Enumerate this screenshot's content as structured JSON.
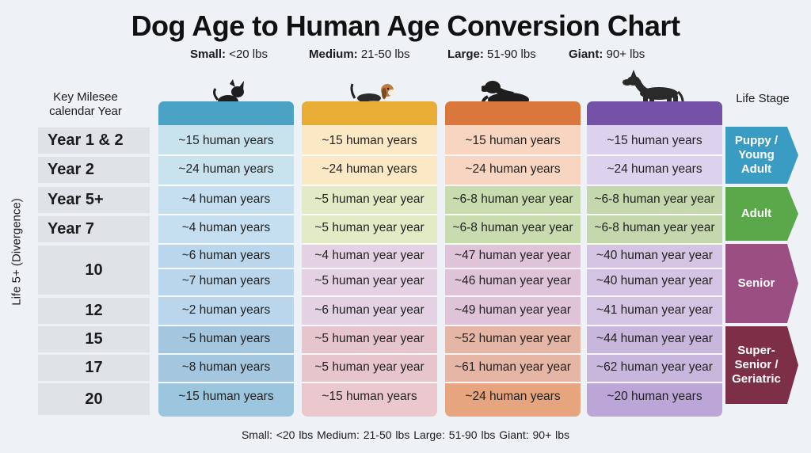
{
  "title": "Dog Age  to Human Age Conversion Chart",
  "legend": [
    {
      "label": "Small:",
      "value": "<20 lbs"
    },
    {
      "label": "Medium:",
      "value": "21-50 lbs"
    },
    {
      "label": "Large:",
      "value": "51-90 lbs"
    },
    {
      "label": "Giant:",
      "value": "90+ lbs"
    }
  ],
  "key_header_line1": "Key Milesee",
  "key_header_line2": "calendar Year",
  "life_stage_header": "Life Stage",
  "side_label": "Life 5+ (Divergence)",
  "footer": "Small: <20 lbs   Medium: 21-50 lbs   Large: 51-90 lbs   Giant: 90+ lbs",
  "dog_icons": [
    "chihuahua-icon",
    "beagle-icon",
    "labrador-icon",
    "great-dane-icon"
  ],
  "colors": {
    "small": "#4aa3c4",
    "medium": "#e9ac35",
    "large": "#d9773c",
    "giant": "#7552a8",
    "puppy": "#3a9cc2",
    "adult": "#5aa84a",
    "senior": "#9b4e82",
    "geriatric": "#7d2f47"
  },
  "chart_data": {
    "type": "table",
    "title": "Dog Age  to Human Age Conversion Chart",
    "columns": [
      "Small",
      "Medium",
      "Large",
      "Giant"
    ],
    "rows": [
      {
        "year": "Year 1 & 2",
        "values": [
          "~15 human years",
          "~15 human years",
          "~15 human years",
          "~15 human years"
        ]
      },
      {
        "year": "Year 2",
        "values": [
          "~24 human years",
          "~24 human years",
          "~24 human years",
          "~24 human years"
        ]
      },
      {
        "year": "Year 5+",
        "values": [
          "~4 human years",
          "~5 human year year",
          "~6-8 human year year",
          "~6-8 human year year"
        ]
      },
      {
        "year": "Year 7",
        "values": [
          "~4 human years",
          "~5 human year year",
          "~6-8 human year year",
          "~6-8 human year year"
        ]
      },
      {
        "year": "10",
        "values": [
          "~6 human years",
          "~4 human year year",
          "~47 human year year",
          "~40 human year year"
        ]
      },
      {
        "year": "",
        "values": [
          "~7 human years",
          "~5 human year year",
          "~46 human year year",
          "~40 human year year"
        ]
      },
      {
        "year": "12",
        "values": [
          "~2 human years",
          "~6 human year year",
          "~49 human year year",
          "~41 human year year"
        ]
      },
      {
        "year": "15",
        "values": [
          "~5 human years",
          "~5 human year year",
          "~52 human year year",
          "~44 human year year"
        ]
      },
      {
        "year": "17",
        "values": [
          "~8 human years",
          "~5 human year year",
          "~61 human year year",
          "~62 human year year"
        ]
      },
      {
        "year": "20",
        "values": [
          "~15 human years",
          "~15 human years",
          "~24 human years",
          "~20 human years"
        ]
      }
    ],
    "life_stages": [
      {
        "label": "Puppy / Young Adult",
        "color": "#3a9cc2"
      },
      {
        "label": "Adult",
        "color": "#5aa84a"
      },
      {
        "label": "Senior",
        "color": "#9b4e82"
      },
      {
        "label": "Super-Senior / Geriatric",
        "color": "#7d2f47"
      }
    ]
  }
}
